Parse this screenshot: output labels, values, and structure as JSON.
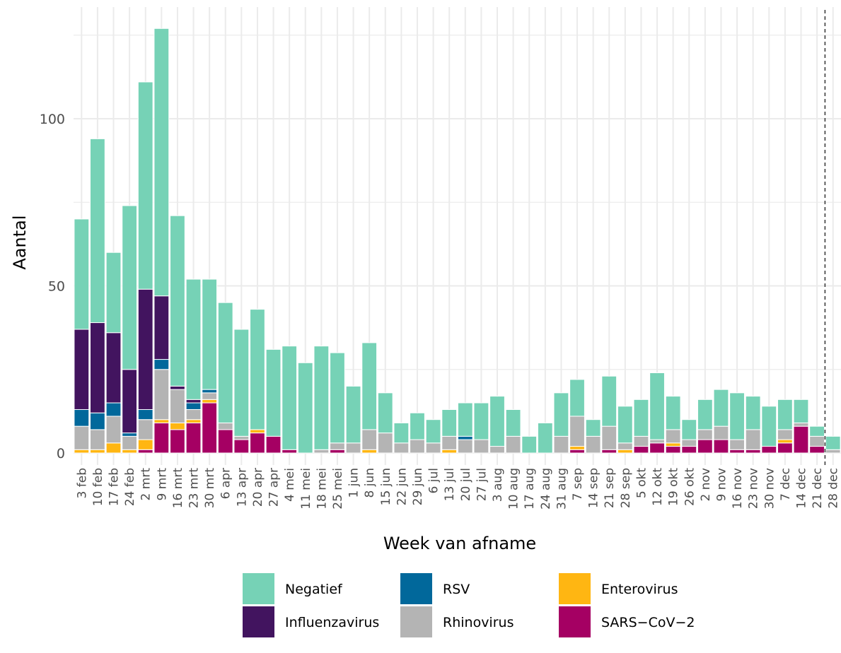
{
  "chart_data": {
    "type": "bar",
    "stacked": true,
    "title": "",
    "xlabel": "Week van afname",
    "ylabel": "Aantal",
    "ylim": [
      0,
      127
    ],
    "yticks": [
      0,
      50,
      100
    ],
    "grid": true,
    "legend_position": "bottom",
    "reference_line": {
      "x": "21 dec/28 dec",
      "style": "dashed"
    },
    "categories": [
      "3 feb",
      "10 feb",
      "17 feb",
      "24 feb",
      "2 mrt",
      "9 mrt",
      "16 mrt",
      "23 mrt",
      "30 mrt",
      "6 apr",
      "13 apr",
      "20 apr",
      "27 apr",
      "4 mei",
      "11 mei",
      "18 mei",
      "25 mei",
      "1 jun",
      "8 jun",
      "15 jun",
      "22 jun",
      "29 jun",
      "6 jul",
      "13 jul",
      "20 jul",
      "27 jul",
      "3 aug",
      "10 aug",
      "17 aug",
      "24 aug",
      "31 aug",
      "7 sep",
      "14 sep",
      "21 sep",
      "28 sep",
      "5 okt",
      "12 okt",
      "19 okt",
      "26 okt",
      "2 nov",
      "9 nov",
      "16 nov",
      "23 nov",
      "30 nov",
      "7 dec",
      "14 dec",
      "21 dec",
      "28 dec"
    ],
    "series": [
      {
        "name": "SARS−CoV−2",
        "color": "#a50063",
        "values": [
          0,
          0,
          0,
          0,
          1,
          9,
          7,
          9,
          15,
          7,
          4,
          6,
          5,
          1,
          0,
          0,
          1,
          0,
          0,
          0,
          0,
          0,
          0,
          0,
          0,
          0,
          0,
          0,
          0,
          0,
          0,
          1,
          0,
          1,
          0,
          2,
          3,
          2,
          2,
          4,
          4,
          1,
          1,
          2,
          3,
          8,
          2,
          0
        ]
      },
      {
        "name": "Enterovirus",
        "color": "#ffb612",
        "values": [
          1,
          1,
          3,
          1,
          3,
          1,
          2,
          1,
          1,
          0,
          0,
          1,
          0,
          0,
          0,
          0,
          0,
          0,
          1,
          0,
          0,
          0,
          0,
          1,
          0,
          0,
          0,
          0,
          0,
          0,
          0,
          1,
          0,
          0,
          1,
          0,
          0,
          1,
          0,
          0,
          0,
          0,
          0,
          0,
          1,
          0,
          0,
          0
        ]
      },
      {
        "name": "Rhinovirus",
        "color": "#b4b4b4",
        "values": [
          7,
          6,
          8,
          4,
          6,
          15,
          10,
          3,
          2,
          2,
          1,
          0,
          0,
          0,
          0,
          1,
          2,
          3,
          6,
          6,
          3,
          4,
          3,
          4,
          4,
          4,
          2,
          5,
          0,
          0,
          5,
          9,
          5,
          7,
          2,
          3,
          1,
          4,
          2,
          3,
          4,
          3,
          6,
          0,
          3,
          1,
          3,
          1
        ]
      },
      {
        "name": "RSV",
        "color": "#01689b",
        "values": [
          5,
          5,
          4,
          1,
          3,
          3,
          0,
          2,
          1,
          0,
          0,
          0,
          0,
          0,
          0,
          0,
          0,
          0,
          0,
          0,
          0,
          0,
          0,
          0,
          1,
          0,
          0,
          0,
          0,
          0,
          0,
          0,
          0,
          0,
          0,
          0,
          0,
          0,
          0,
          0,
          0,
          0,
          0,
          0,
          0,
          0,
          0,
          0
        ]
      },
      {
        "name": "Influenzavirus",
        "color": "#42145f",
        "values": [
          24,
          27,
          21,
          19,
          36,
          19,
          1,
          1,
          0,
          0,
          0,
          0,
          0,
          0,
          0,
          0,
          0,
          0,
          0,
          0,
          0,
          0,
          0,
          0,
          0,
          0,
          0,
          0,
          0,
          0,
          0,
          0,
          0,
          0,
          0,
          0,
          0,
          0,
          0,
          0,
          0,
          0,
          0,
          0,
          0,
          0,
          0,
          0
        ]
      },
      {
        "name": "Negatief",
        "color": "#76d2b6",
        "values": [
          33,
          55,
          24,
          49,
          62,
          80,
          51,
          36,
          33,
          36,
          32,
          36,
          26,
          31,
          27,
          31,
          27,
          17,
          26,
          12,
          6,
          8,
          7,
          8,
          10,
          11,
          15,
          8,
          5,
          9,
          13,
          11,
          5,
          15,
          11,
          11,
          20,
          10,
          6,
          9,
          11,
          14,
          10,
          12,
          9,
          7,
          3,
          4
        ]
      }
    ],
    "legend": [
      "Negatief",
      "RSV",
      "Enterovirus",
      "Influenzavirus",
      "Rhinovirus",
      "SARS−CoV−2"
    ]
  }
}
